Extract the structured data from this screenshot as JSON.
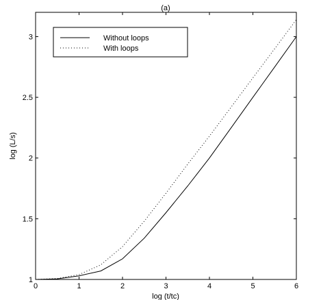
{
  "chart_data": {
    "type": "line",
    "title": "(a)",
    "xlabel": "log (t/tc)",
    "ylabel": "log (L/s)",
    "xlim": [
      0,
      6
    ],
    "ylim": [
      1,
      3.2
    ],
    "x_ticks": [
      "0",
      "1",
      "2",
      "3",
      "4",
      "5",
      "6"
    ],
    "y_ticks": [
      "1",
      "1.5",
      "2",
      "2.5",
      "3"
    ],
    "grid": false,
    "legend_position": "top-left",
    "series": [
      {
        "name": "Without loops",
        "style": "solid",
        "color": "#000000",
        "x": [
          0,
          0.5,
          1,
          1.5,
          2,
          2.5,
          3,
          3.5,
          4,
          4.5,
          5,
          5.5,
          6
        ],
        "y": [
          1.0,
          1.005,
          1.03,
          1.07,
          1.17,
          1.34,
          1.55,
          1.77,
          2.0,
          2.25,
          2.5,
          2.75,
          3.0
        ]
      },
      {
        "name": "With loops",
        "style": "dotted",
        "color": "#000000",
        "x": [
          0,
          0.5,
          1,
          1.5,
          2,
          2.5,
          3,
          3.5,
          4,
          4.5,
          5,
          5.5,
          6
        ],
        "y": [
          1.0,
          1.008,
          1.04,
          1.12,
          1.27,
          1.48,
          1.71,
          1.95,
          2.18,
          2.42,
          2.66,
          2.9,
          3.14
        ]
      }
    ]
  }
}
